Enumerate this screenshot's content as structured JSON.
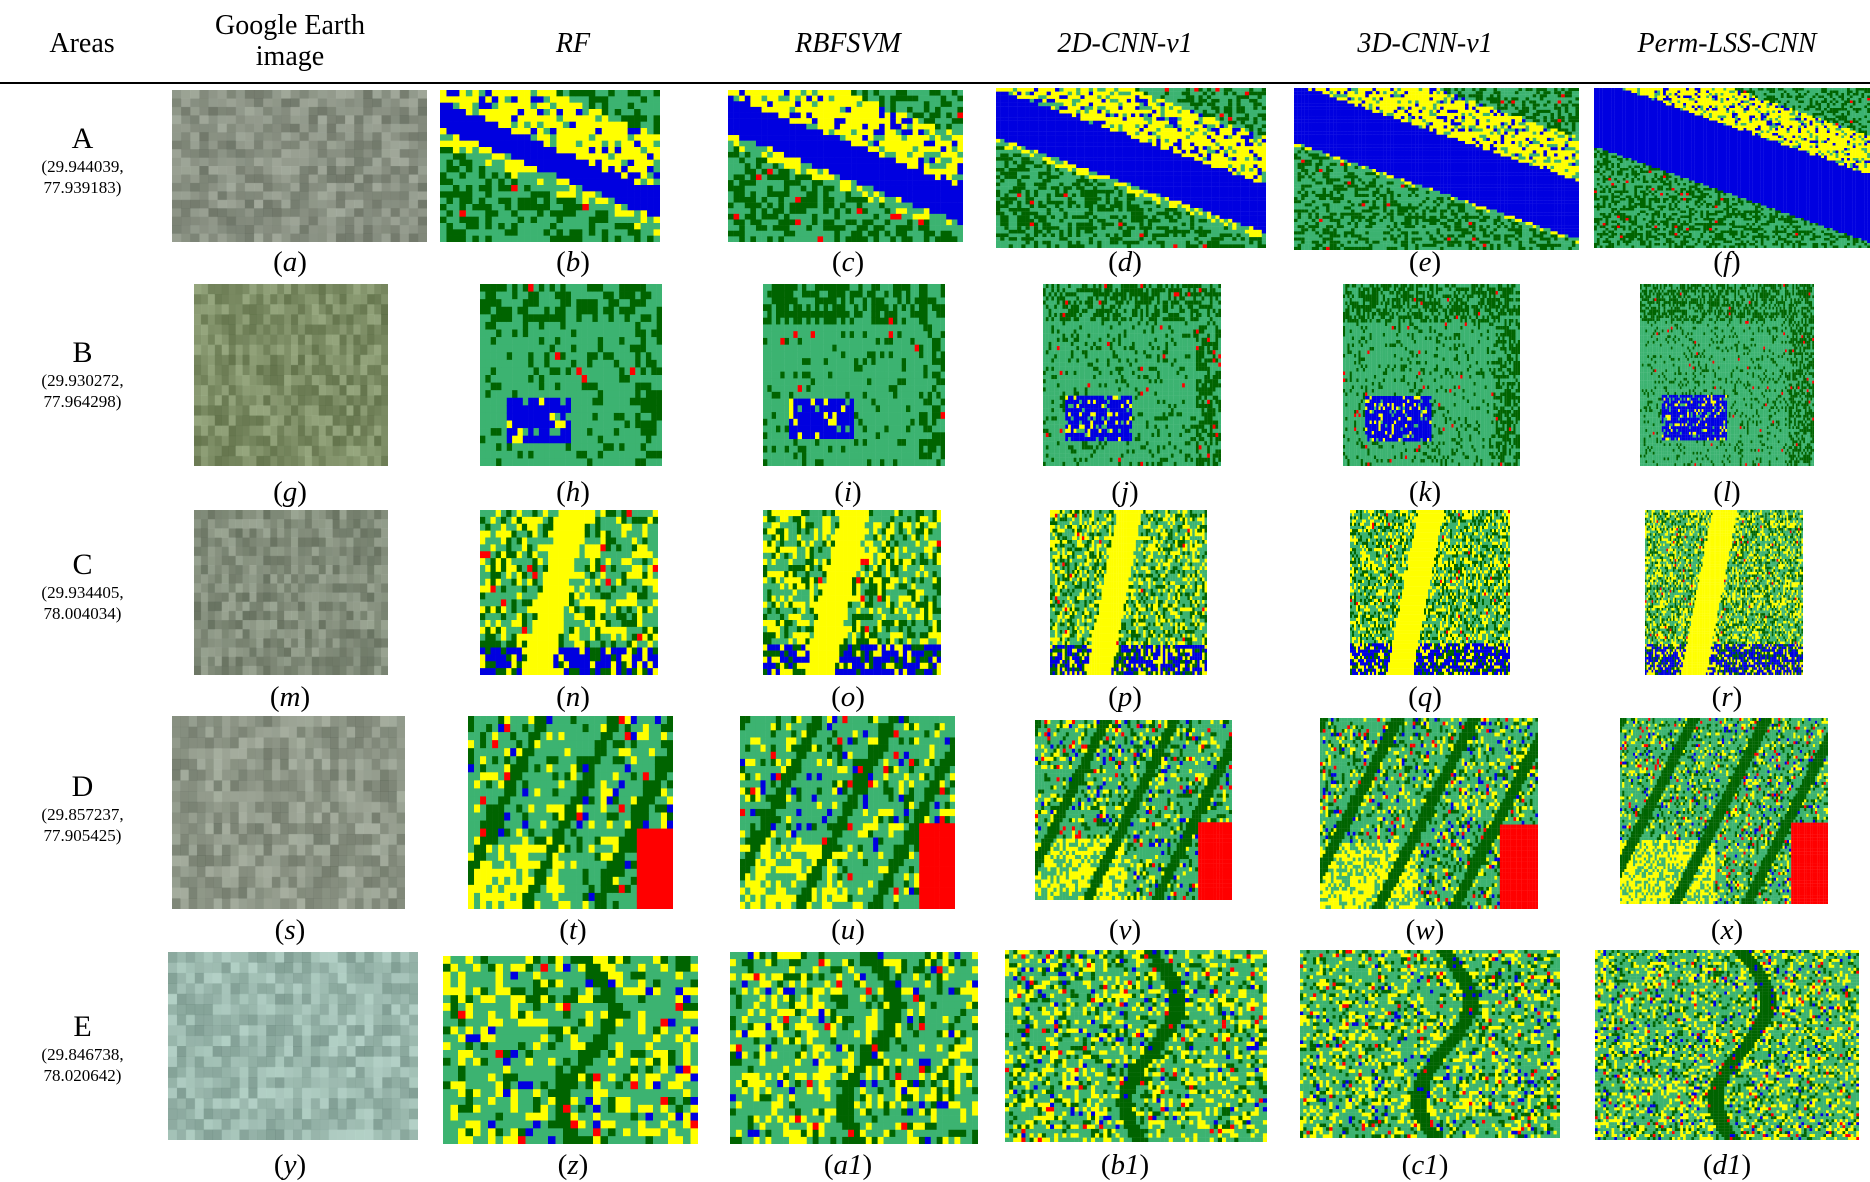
{
  "header": {
    "areas": "Areas",
    "ge_line1": "Google Earth",
    "ge_line2": "image",
    "methods": [
      "RF",
      "RBFSVM",
      "2D-CNN-v1",
      "3D-CNN-v1",
      "Perm-LSS-CNN"
    ]
  },
  "rows": [
    {
      "area": "A",
      "coord1": "(29.944039,",
      "coord2": "77.939183)",
      "captions": [
        "a",
        "b",
        "c",
        "d",
        "e",
        "f"
      ]
    },
    {
      "area": "B",
      "coord1": "(29.930272,",
      "coord2": "77.964298)",
      "captions": [
        "g",
        "h",
        "i",
        "j",
        "k",
        "l"
      ]
    },
    {
      "area": "C",
      "coord1": "(29.934405,",
      "coord2": "78.004034)",
      "captions": [
        "m",
        "n",
        "o",
        "p",
        "q",
        "r"
      ]
    },
    {
      "area": "D",
      "coord1": "(29.857237,",
      "coord2": "77.905425)",
      "captions": [
        "s",
        "t",
        "u",
        "v",
        "w",
        "x"
      ]
    },
    {
      "area": "E",
      "coord1": "(29.846738,",
      "coord2": "78.020642)",
      "captions": [
        "y",
        "z",
        "a1",
        "b1",
        "c1",
        "d1"
      ]
    }
  ],
  "class_colors": {
    "vegetation": "#3cb371",
    "forest": "#006400",
    "water": "#0000e0",
    "bare": "#ffff00",
    "urban": "#ff0000"
  }
}
